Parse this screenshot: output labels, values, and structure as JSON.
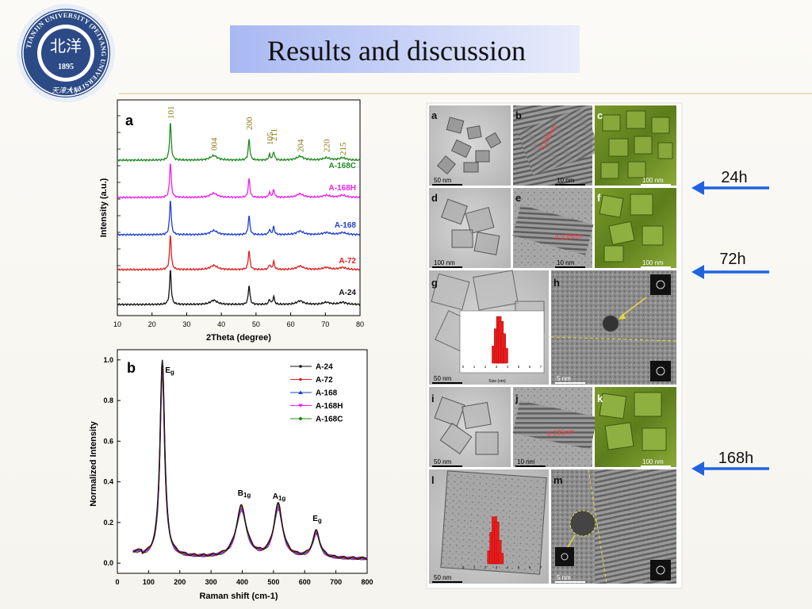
{
  "slide": {
    "title": "Results and discussion",
    "logo": {
      "ring_text": "TIANJIN UNIVERSITY (PEIYANG UNIVERSITY)",
      "year": "1895",
      "center_glyph": "北洋",
      "script": "天津大学"
    },
    "arrows": [
      {
        "label": "24h"
      },
      {
        "label": "72h"
      },
      {
        "label": "168h"
      }
    ],
    "colors": {
      "title_box": "#b9c7f5",
      "arrow": "#1f63e0",
      "xrd_green": "#1f8a1f",
      "xrd_magenta": "#ee22ee",
      "xrd_blue": "#1f3fd0",
      "xrd_red": "#e02020",
      "xrd_black": "#111111",
      "peak_label": "#8a7a10"
    }
  },
  "micrographs": {
    "panel_letters": [
      "a",
      "b",
      "c",
      "d",
      "e",
      "f",
      "g",
      "h",
      "i",
      "j",
      "k",
      "l",
      "m"
    ],
    "scale_bars": {
      "a": "50 nm",
      "b": "10 nm",
      "c": "100 nm",
      "d": "100 nm",
      "e": "10 nm",
      "f": "100 nm",
      "g": "50 nm",
      "h": "5 nm",
      "i": "50 nm",
      "j": "10 nm",
      "k": "100 nm",
      "l": "50 nm",
      "m": "5 nm"
    },
    "lattice_labels": {
      "b": "0.235nm",
      "e": "0.235nm",
      "j": "0.235nm"
    },
    "hist_xlabel": "Size (nm)",
    "hist_ticks_g": [
      "0",
      "1",
      "2",
      "3",
      "4",
      "5",
      "6",
      "7"
    ],
    "hist_ticks_l": [
      "0",
      "1",
      "2",
      "3",
      "4",
      "5",
      "6",
      "7"
    ]
  },
  "chart_data": [
    {
      "panel": "a",
      "type": "line",
      "title": "",
      "xlabel": "2Theta (degree)",
      "ylabel": "Intensity (a.u.)",
      "xlim": [
        10,
        80
      ],
      "x_ticks": [
        "10",
        "20",
        "30",
        "40",
        "50",
        "60",
        "70",
        "80"
      ],
      "grid": false,
      "peaks": [
        {
          "label": "101",
          "x": 25.3,
          "h": 1.0
        },
        {
          "label": "004",
          "x": 37.8,
          "h": 0.12
        },
        {
          "label": "200",
          "x": 48.0,
          "h": 0.55
        },
        {
          "label": "105",
          "x": 53.9,
          "h": 0.14
        },
        {
          "label": "211",
          "x": 55.1,
          "h": 0.22
        },
        {
          "label": "204",
          "x": 62.7,
          "h": 0.1
        },
        {
          "label": "220",
          "x": 70.3,
          "h": 0.06
        },
        {
          "label": "215",
          "x": 75.0,
          "h": 0.06
        }
      ],
      "series": [
        {
          "name": "A-168C",
          "color": "#1f8a1f",
          "offset": 4
        },
        {
          "name": "A-168H",
          "color": "#ee22ee",
          "offset": 3
        },
        {
          "name": "A-168",
          "color": "#1f3fd0",
          "offset": 2
        },
        {
          "name": "A-72",
          "color": "#e02020",
          "offset": 1
        },
        {
          "name": "A-24",
          "color": "#111111",
          "offset": 0
        }
      ]
    },
    {
      "panel": "b",
      "type": "line",
      "title": "",
      "xlabel": "Raman shift",
      "xunit": "(cm-1)",
      "ylabel": "Normalized Intensity",
      "xlim": [
        0,
        800
      ],
      "ylim": [
        -0.05,
        1.05
      ],
      "x_ticks": [
        "0",
        "100",
        "200",
        "300",
        "400",
        "500",
        "600",
        "700",
        "800"
      ],
      "y_ticks": [
        "0.0",
        "0.2",
        "0.4",
        "0.6",
        "0.8",
        "1.0"
      ],
      "bands": [
        {
          "label": "Eg",
          "x": 144,
          "y": 1.0
        },
        {
          "label": "B1g",
          "x": 397,
          "y": 0.27
        },
        {
          "label": "A1g",
          "x": 515,
          "y": 0.28
        },
        {
          "label": "Eg",
          "x": 637,
          "y": 0.15
        }
      ],
      "legend": "top-right",
      "series": [
        {
          "name": "A-24",
          "color": "#111111",
          "marker": "circle"
        },
        {
          "name": "A-72",
          "color": "#e02020",
          "marker": "circle"
        },
        {
          "name": "A-168",
          "color": "#1f3fd0",
          "marker": "triangle"
        },
        {
          "name": "A-168H",
          "color": "#ee22ee",
          "marker": "triangle-down"
        },
        {
          "name": "A-168C",
          "color": "#1f8a1f",
          "marker": "diamond"
        }
      ]
    }
  ]
}
